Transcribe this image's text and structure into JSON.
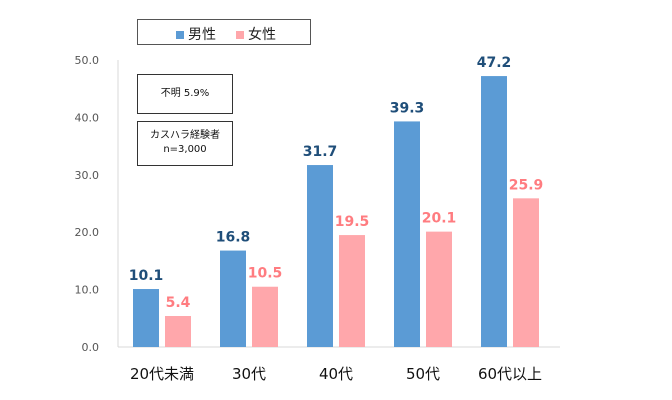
{
  "chart_data": {
    "type": "bar",
    "categories": [
      "20代未満",
      "30代",
      "40代",
      "50代",
      "60代以上"
    ],
    "series": [
      {
        "name": "男性",
        "values": [
          10.1,
          16.8,
          31.7,
          39.3,
          47.2
        ],
        "color": "#5b9bd5",
        "label_color": "#1f4e79"
      },
      {
        "name": "女性",
        "values": [
          5.4,
          10.5,
          19.5,
          20.1,
          25.9
        ],
        "color": "#ffa7ab",
        "label_color": "#ff7c80"
      }
    ],
    "yticks": [
      "0.0",
      "10.0",
      "20.0",
      "30.0",
      "40.0",
      "50.0"
    ],
    "ylim": [
      0,
      50
    ],
    "grid": false,
    "legend_position": "top-center"
  },
  "notes": {
    "unknown": "不明  5.9%",
    "respondents_line1": "カスハラ経験者",
    "respondents_line2": "n=3,000"
  }
}
